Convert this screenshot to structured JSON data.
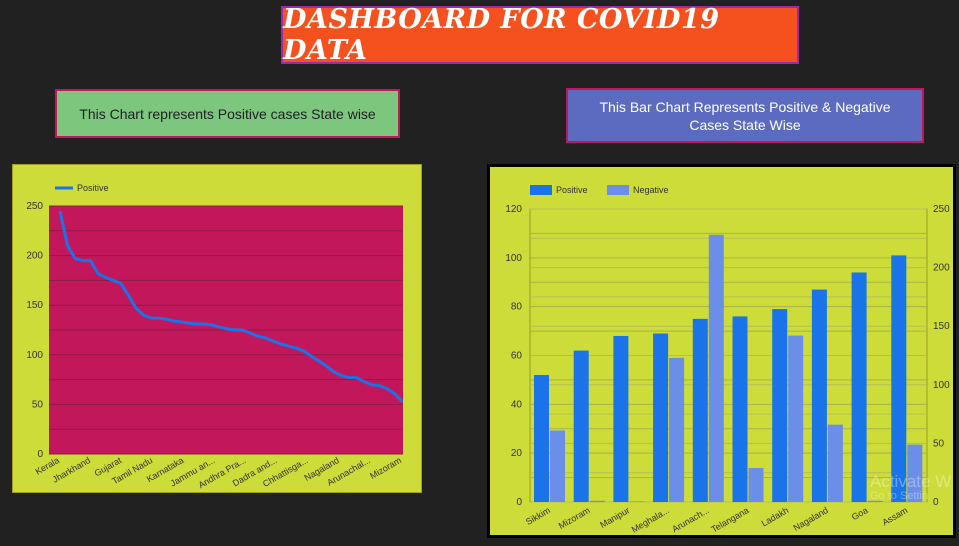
{
  "title": "DASHBOARD  FOR  COVID19 DATA",
  "captions": {
    "left": "This Chart represents Positive cases State wise",
    "right": "This Bar Chart Represents  Positive & Negative Cases  State Wise"
  },
  "colors": {
    "page_bg": "#212121",
    "title_bg": "#f4511e",
    "card_bg": "#cddc39",
    "plot_bg_line": "#c2185b",
    "positive": "#1a73e8",
    "negative": "#6b8ee8"
  },
  "watermark": {
    "line1": "Activate W",
    "line2": "Go to Settin"
  },
  "chart_data": [
    {
      "type": "line",
      "title": "",
      "xlabel": "",
      "ylabel": "",
      "legend": "top-left",
      "grid": true,
      "ylim": [
        0,
        250
      ],
      "yticks": [
        "250",
        "200",
        "150",
        "100",
        "50",
        "0"
      ],
      "tick_labels": [
        "Kerala",
        "Jharkhand",
        "Gujarat",
        "Tamil Nadu",
        "Karnataka",
        "Jammu an...",
        "Andhra Pra...",
        "Dadra and...",
        "Chhattisga...",
        "Nagaland",
        "Arunachal...",
        "Mizoram"
      ],
      "series": [
        {
          "name": "Positive",
          "values": [
            245,
            210,
            197,
            195,
            195,
            182,
            178,
            175,
            172,
            160,
            147,
            140,
            137,
            137,
            136,
            134,
            133,
            132,
            131,
            131,
            130,
            128,
            126,
            125,
            125,
            122,
            119,
            117,
            114,
            111,
            109,
            107,
            104,
            99,
            94,
            89,
            83,
            79,
            77,
            77,
            73,
            70,
            69,
            66,
            61,
            53
          ]
        }
      ]
    },
    {
      "type": "bar",
      "title": "",
      "xlabel": "",
      "ylabel": "",
      "legend": "top-left",
      "grid": true,
      "categories": [
        "Sikkim",
        "Mizoram",
        "Manipur",
        "Meghala...",
        "Arunach...",
        "Telangana",
        "Ladakh",
        "Nagaland",
        "Goa",
        "Assam"
      ],
      "ylim_left": [
        0,
        120
      ],
      "ylim_right": [
        0,
        250
      ],
      "yticks_left": [
        "120",
        "100",
        "80",
        "60",
        "40",
        "20",
        "0"
      ],
      "yticks_right": [
        "250",
        "200",
        "150",
        "100",
        "50",
        "0"
      ],
      "series": [
        {
          "name": "Positive",
          "axis": "left",
          "values": [
            52,
            62,
            68,
            69,
            75,
            76,
            79,
            87,
            94,
            101
          ]
        },
        {
          "name": "Negative",
          "axis": "right",
          "values": [
            61,
            1,
            0.5,
            123,
            228,
            29,
            142,
            66,
            1,
            49
          ]
        }
      ]
    }
  ]
}
